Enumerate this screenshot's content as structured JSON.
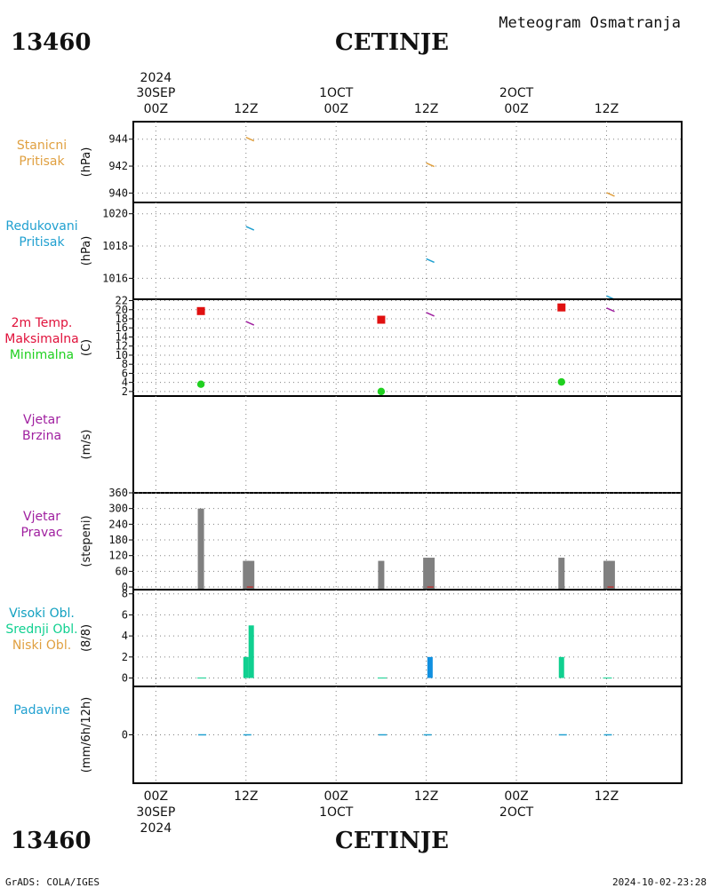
{
  "header": {
    "station_id": "13460",
    "station_name": "CETINJE",
    "product": "Meteogram Osmatranja"
  },
  "footer": {
    "station_id": "13460",
    "station_name": "CETINJE",
    "credit": "GrADS: COLA/IGES",
    "timestamp": "2024-10-02-23:28"
  },
  "time_axis": {
    "top_labels": [
      {
        "line1": "2024",
        "line2": "30SEP",
        "line3": "00Z",
        "t": 0
      },
      {
        "line1": "",
        "line2": "",
        "line3": "12Z",
        "t": 12
      },
      {
        "line1": "",
        "line2": "1OCT",
        "line3": "00Z",
        "t": 24
      },
      {
        "line1": "",
        "line2": "",
        "line3": "12Z",
        "t": 36
      },
      {
        "line1": "",
        "line2": "2OCT",
        "line3": "00Z",
        "t": 48
      },
      {
        "line1": "",
        "line2": "",
        "line3": "12Z",
        "t": 60
      }
    ],
    "bottom_labels": [
      {
        "line1": "00Z",
        "line2": "30SEP",
        "line3": "2024",
        "t": 0
      },
      {
        "line1": "12Z",
        "line2": "",
        "line3": "",
        "t": 12
      },
      {
        "line1": "00Z",
        "line2": "1OCT",
        "line3": "",
        "t": 24
      },
      {
        "line1": "12Z",
        "line2": "",
        "line3": "",
        "t": 36
      },
      {
        "line1": "00Z",
        "line2": "2OCT",
        "line3": "",
        "t": 48
      },
      {
        "line1": "12Z",
        "line2": "",
        "line3": "",
        "t": 60
      }
    ],
    "unit": "hours from 2024-09-30 00Z",
    "range": [
      -3,
      70
    ]
  },
  "colors": {
    "pressure_station": "#e0a040",
    "pressure_reduced": "#20a0d0",
    "temp_max_label": "#e0103a",
    "temp_max_marker": "#e01010",
    "temp_min": "#20d020",
    "wind": "#a020a0",
    "wind_dir_bar": "#808080",
    "cloud_high": "#10a0c0",
    "cloud_mid": "#10d090",
    "cloud_low": "#e0a040",
    "precip": "#20a0d0",
    "grid": "#808080"
  },
  "chart_data": [
    {
      "type": "line",
      "panel": "stanicni-pritisak",
      "labels": [
        {
          "text": "Stanicni",
          "color": "#e0a040"
        },
        {
          "text": "Pritisak",
          "color": "#e0a040"
        }
      ],
      "unit": "(hPa)",
      "ylim": [
        939.3,
        945.3
      ],
      "yticks": [
        940,
        942,
        944
      ],
      "series": [
        {
          "values": [
            [
              12,
              944.0
            ],
            [
              36,
              942.1
            ],
            [
              60,
              939.9
            ]
          ]
        }
      ]
    },
    {
      "type": "line",
      "panel": "redukovani-pritisak",
      "labels": [
        {
          "text": "Redukovani",
          "color": "#20a0d0"
        },
        {
          "text": "Pritisak",
          "color": "#20a0d0"
        }
      ],
      "unit": "(hPa)",
      "ylim": [
        1014.7,
        1020.7
      ],
      "yticks": [
        1016,
        1018,
        1020
      ],
      "series": [
        {
          "values": [
            [
              12,
              1019.1
            ],
            [
              36,
              1017.1
            ],
            [
              60,
              1014.8
            ]
          ]
        }
      ]
    },
    {
      "type": "line",
      "panel": "temperatura",
      "labels": [
        {
          "text": "2m Temp.",
          "color": "#e0103a"
        },
        {
          "text": "Maksimalna",
          "color": "#e0103a"
        },
        {
          "text": "Minimalna",
          "color": "#20d020"
        }
      ],
      "unit": "(C)",
      "ylim": [
        1.0,
        22.3
      ],
      "yticks": [
        2,
        4,
        6,
        8,
        10,
        12,
        14,
        16,
        18,
        20,
        22
      ],
      "series": [
        {
          "values": [
            [
              12,
              17.0
            ],
            [
              36,
              19.0
            ],
            [
              60,
              20.0
            ]
          ]
        },
        {
          "values": [
            [
              6,
              19.7
            ],
            [
              30,
              17.8
            ],
            [
              54,
              20.5
            ]
          ]
        },
        {
          "values": [
            [
              6,
              3.6
            ],
            [
              30,
              2.0
            ],
            [
              54,
              4.1
            ]
          ]
        }
      ]
    },
    {
      "type": "line",
      "panel": "vjetar-brzina",
      "labels": [
        {
          "text": "Vjetar",
          "color": "#a020a0"
        },
        {
          "text": "Brzina",
          "color": "#a020a0"
        }
      ],
      "unit": "(m/s)",
      "ylim": [
        0,
        10
      ],
      "yticks": [],
      "series": []
    },
    {
      "type": "bar",
      "panel": "vjetar-pravac",
      "labels": [
        {
          "text": "Vjetar",
          "color": "#a020a0"
        },
        {
          "text": "Pravac",
          "color": "#a020a0"
        }
      ],
      "unit": "(stepeni)",
      "ylim": [
        -10,
        360
      ],
      "yticks": [
        0,
        60,
        120,
        180,
        240,
        300,
        360
      ],
      "series": [
        {
          "values": [
            [
              6,
              300
            ],
            [
              12,
              100
            ],
            [
              12.7,
              100
            ],
            [
              30,
              100
            ],
            [
              36,
              112
            ],
            [
              36.7,
              112
            ],
            [
              54,
              112
            ],
            [
              60,
              100
            ],
            [
              60.7,
              100
            ]
          ]
        }
      ]
    },
    {
      "type": "bar",
      "panel": "oblacnost",
      "labels": [
        {
          "text": "Visoki Obl.",
          "color": "#10a0c0"
        },
        {
          "text": "Srednji Obl.",
          "color": "#10d090"
        },
        {
          "text": "Niski Obl.",
          "color": "#e0a040"
        }
      ],
      "unit": "(8/8)",
      "ylim": [
        -0.8,
        8.4
      ],
      "yticks": [
        0,
        2,
        4,
        6,
        8
      ],
      "series": [
        {
          "values": [
            [
              36.5,
              2
            ]
          ]
        },
        {
          "values": [
            [
              12,
              2
            ],
            [
              12.7,
              5
            ],
            [
              54,
              2
            ]
          ]
        }
      ]
    },
    {
      "type": "line",
      "panel": "padavine",
      "labels": [
        {
          "text": "Padavine",
          "color": "#20a0d0"
        }
      ],
      "unit": "(mm/6h/12h)",
      "ylim": [
        -5,
        5
      ],
      "yticks": [
        0
      ],
      "series": [
        {
          "values": [
            [
              6,
              0
            ],
            [
              12,
              0
            ],
            [
              30,
              0
            ],
            [
              36,
              0
            ],
            [
              54,
              0
            ],
            [
              60,
              0
            ]
          ]
        }
      ]
    }
  ]
}
